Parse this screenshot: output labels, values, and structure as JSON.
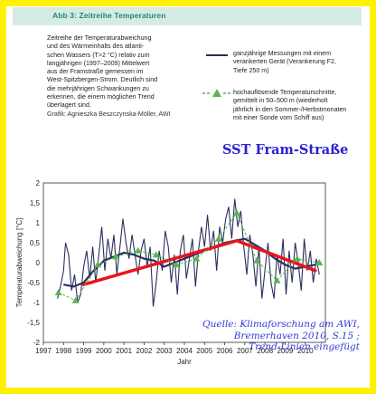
{
  "figure": {
    "label": "Abb 3: Zeitreihe Temperaturen",
    "caption_lines": [
      "Zeitreihe der Temperaturabweichung",
      "und des Wärmeinhalts des atlanti-",
      "schen Wassers (T>2 °C) relativ zum",
      "langjährigen (1997–2009) Mittelwert",
      "aus der Framstraße gemessen im",
      "West-Spitzbergen-Strom. Deutlich sind",
      "die mehrjährigen Schwankungen zu",
      "erkennen, die einem möglichen Trend",
      "überlagert sind."
    ],
    "credit": "Grafik: Agnieszka Beszczynska-Möller, AWI"
  },
  "legend": {
    "line_lines": [
      "ganzjährige Messungen mit einem",
      "verankerten Gerät (Verankerung F2,",
      "Tiefe 250 m)"
    ],
    "marker_lines": [
      "hochauflösende Temperaturschnitte,",
      "gemittelt in 50–500 m (wiederholt",
      "jährlich in den Sommer-/Herbstmonaten",
      "mit einer Sonde vom Schiff aus)"
    ]
  },
  "annotation": {
    "title": "SST Fram-Straße",
    "source_lines": [
      "Quelle: Klimaforschung am AWI,",
      "Bremerhaven 2010, S.15 ;",
      "Trend-Linien eingefügt"
    ]
  },
  "colors": {
    "frame": "#fff200",
    "header_strip": "#d6ebe4",
    "title_text": "#1f8a76",
    "series_line": "#2a2f5e",
    "marker": "#59b54c",
    "trend": "#e8141c",
    "annotation_text": "#2a21d1"
  },
  "chart_data": {
    "type": "line",
    "xlabel": "Jahr",
    "ylabel": "Temperaturabweichung [°C]",
    "xlim": [
      1997,
      2011
    ],
    "ylim": [
      -2,
      2
    ],
    "x_ticks": [
      "1997",
      "1998",
      "1999",
      "2000",
      "2001",
      "2002",
      "2003",
      "2004",
      "2005",
      "2006",
      "2007",
      "2008",
      "2009",
      "2010"
    ],
    "y_ticks": [
      "-2",
      "-1,5",
      "-1",
      "-0,5",
      "0",
      "0,5",
      "1",
      "1,5",
      "2"
    ],
    "grid": true,
    "series": [
      {
        "type": "line",
        "x": [
          1997.7,
          1997.85,
          1998.0,
          1998.1,
          1998.25,
          1998.4,
          1998.55,
          1998.7,
          1998.85,
          1999.0,
          1999.15,
          1999.3,
          1999.45,
          1999.6,
          1999.75,
          1999.9,
          2000.05,
          2000.2,
          2000.35,
          2000.5,
          2000.65,
          2000.8,
          2000.95,
          2001.1,
          2001.25,
          2001.4,
          2001.55,
          2001.7,
          2001.85,
          2002.0,
          2002.15,
          2002.3,
          2002.45,
          2002.6,
          2002.75,
          2002.9,
          2003.05,
          2003.2,
          2003.35,
          2003.5,
          2003.65,
          2003.8,
          2003.95,
          2004.1,
          2004.25,
          2004.4,
          2004.55,
          2004.7,
          2004.85,
          2005.0,
          2005.15,
          2005.3,
          2005.45,
          2005.6,
          2005.75,
          2005.9,
          2006.05,
          2006.2,
          2006.35,
          2006.5,
          2006.65,
          2006.8,
          2006.95,
          2007.1,
          2007.25,
          2007.4,
          2007.55,
          2007.7,
          2007.85,
          2008.0,
          2008.15,
          2008.3,
          2008.45,
          2008.6,
          2008.75,
          2008.9,
          2009.05,
          2009.2,
          2009.35,
          2009.5,
          2009.65,
          2009.8,
          2009.95,
          2010.1,
          2010.25,
          2010.4,
          2010.55,
          2010.7
        ],
        "y": [
          -0.9,
          -0.6,
          -0.2,
          0.5,
          0.2,
          -0.7,
          -0.3,
          -1.0,
          -0.8,
          -0.1,
          0.3,
          -0.4,
          0.4,
          -0.5,
          0.2,
          0.9,
          -0.2,
          0.6,
          0.1,
          0.7,
          -0.3,
          0.4,
          1.1,
          0.5,
          0.1,
          0.7,
          0.2,
          -0.3,
          0.3,
          0.6,
          -0.1,
          0.4,
          -1.1,
          -0.5,
          0.3,
          -0.2,
          0.8,
          0.4,
          -0.5,
          0.2,
          -0.8,
          0.3,
          0.7,
          -0.4,
          0.1,
          0.6,
          -0.6,
          0.3,
          0.9,
          0.4,
          1.2,
          0.3,
          0.8,
          -0.2,
          0.9,
          0.5,
          1.1,
          1.4,
          0.6,
          1.6,
          0.9,
          1.3,
          0.4,
          -0.3,
          0.7,
          0.2,
          -0.6,
          0.4,
          -0.9,
          -0.2,
          0.5,
          -0.5,
          -0.9,
          0.2,
          -0.3,
          0.6,
          -0.8,
          0.3,
          -0.5,
          0.5,
          0.0,
          -0.7,
          0.6,
          -0.2,
          0.3,
          -0.5,
          0.1,
          -0.3
        ]
      },
      {
        "type": "line",
        "x": [
          1998.0,
          1998.5,
          1999.0,
          1999.5,
          2000.0,
          2000.5,
          2001.0,
          2001.5,
          2002.0,
          2002.5,
          2003.0,
          2003.5,
          2004.0,
          2004.5,
          2005.0,
          2005.5,
          2006.0,
          2006.5,
          2007.0,
          2007.5,
          2008.0,
          2008.5,
          2009.0,
          2009.5,
          2010.0,
          2010.5
        ],
        "y": [
          -0.55,
          -0.6,
          -0.5,
          -0.2,
          0.05,
          0.15,
          0.25,
          0.2,
          0.1,
          0.05,
          -0.1,
          0.0,
          0.1,
          0.2,
          0.3,
          0.4,
          0.5,
          0.55,
          0.6,
          0.45,
          0.3,
          0.1,
          -0.05,
          -0.15,
          -0.1,
          -0.05
        ]
      },
      {
        "type": "scatter",
        "x": [
          1997.75,
          1998.6,
          1999.7,
          2000.6,
          2001.7,
          2002.6,
          2003.6,
          2004.6,
          2005.7,
          2006.6,
          2007.6,
          2008.6,
          2009.6,
          2010.7
        ],
        "y": [
          -0.75,
          -0.95,
          -0.05,
          0.15,
          0.3,
          0.2,
          -0.05,
          0.1,
          0.6,
          1.25,
          0.05,
          -0.45,
          0.1,
          0.0
        ]
      }
    ],
    "trend_lines": [
      {
        "x": [
          1999.0,
          2006.6
        ],
        "y": [
          -0.55,
          0.55
        ]
      },
      {
        "x": [
          2006.6,
          2010.5
        ],
        "y": [
          0.55,
          -0.2
        ]
      }
    ]
  }
}
